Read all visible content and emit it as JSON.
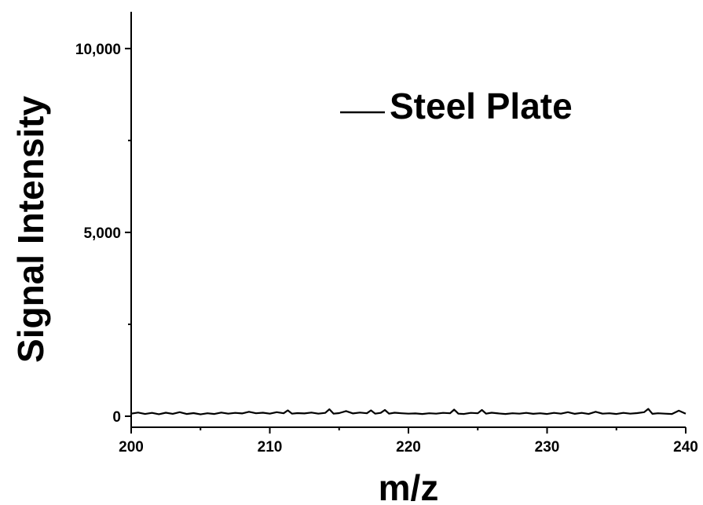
{
  "chart_data": {
    "type": "line",
    "title": "",
    "xlabel": "m/z",
    "ylabel": "Signal Intensity",
    "xlim": [
      200,
      240
    ],
    "ylim": [
      -300,
      11000
    ],
    "x_ticks": [
      200,
      210,
      220,
      230,
      240
    ],
    "x_tick_labels": [
      "200",
      "210",
      "220",
      "230",
      "240"
    ],
    "y_ticks": [
      0,
      5000,
      10000
    ],
    "y_tick_labels": [
      "0",
      "5,000",
      "10,000"
    ],
    "y_minor_ticks": [
      2500,
      7500
    ],
    "grid": false,
    "legend_position": "top-right",
    "series": [
      {
        "name": "Steel Plate",
        "color": "#000000",
        "x": [
          200,
          200.5,
          201,
          201.5,
          202,
          202.5,
          203,
          203.5,
          204,
          204.5,
          205,
          205.5,
          206,
          206.5,
          207,
          207.5,
          208,
          208.5,
          209,
          209.5,
          210,
          210.5,
          211,
          211.3,
          211.6,
          212,
          212.5,
          213,
          213.5,
          214,
          214.3,
          214.6,
          215,
          215.5,
          216,
          216.5,
          217,
          217.3,
          217.6,
          218,
          218.3,
          218.6,
          219,
          219.5,
          220,
          220.5,
          221,
          221.5,
          222,
          222.5,
          223,
          223.3,
          223.6,
          224,
          224.5,
          225,
          225.3,
          225.6,
          226,
          226.5,
          227,
          227.5,
          228,
          228.5,
          229,
          229.5,
          230,
          230.5,
          231,
          231.5,
          232,
          232.5,
          233,
          233.5,
          234,
          234.5,
          235,
          235.5,
          236,
          236.5,
          237,
          237.3,
          237.6,
          238,
          238.5,
          239,
          239.5,
          240
        ],
        "values": [
          70,
          100,
          60,
          90,
          55,
          95,
          65,
          110,
          60,
          85,
          50,
          80,
          60,
          100,
          70,
          90,
          75,
          120,
          80,
          95,
          70,
          110,
          80,
          160,
          70,
          85,
          75,
          100,
          70,
          90,
          190,
          70,
          85,
          140,
          75,
          100,
          80,
          160,
          70,
          90,
          170,
          70,
          95,
          80,
          70,
          75,
          60,
          80,
          70,
          90,
          80,
          180,
          70,
          60,
          90,
          80,
          170,
          70,
          95,
          75,
          60,
          80,
          70,
          90,
          65,
          80,
          60,
          90,
          70,
          110,
          65,
          90,
          60,
          120,
          70,
          80,
          60,
          90,
          70,
          85,
          110,
          200,
          65,
          80,
          70,
          60,
          150,
          70
        ]
      }
    ]
  }
}
